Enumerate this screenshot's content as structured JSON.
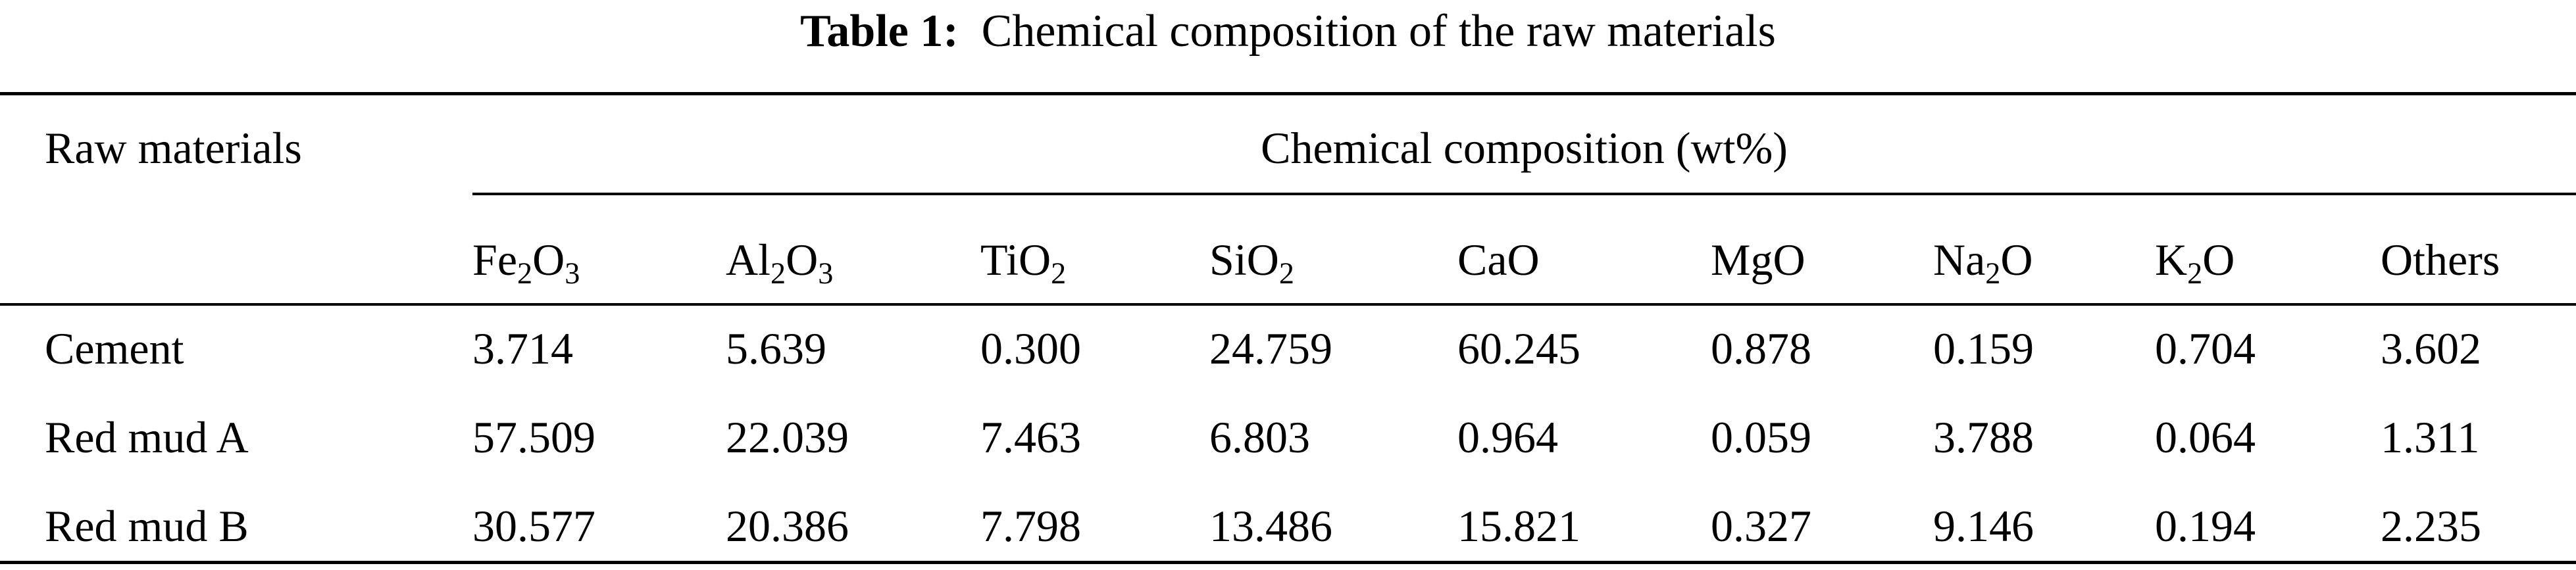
{
  "title": {
    "label": "Table 1:",
    "text": "Chemical composition of the raw materials"
  },
  "table": {
    "row_header": "Raw materials",
    "group_header": "Chemical composition (wt%)",
    "columns": [
      "Fe2O3",
      "Al2O3",
      "TiO2",
      "SiO2",
      "CaO",
      "MgO",
      "Na2O",
      "K2O",
      "Others"
    ],
    "rows": [
      {
        "name": "Cement",
        "values": [
          "3.714",
          "5.639",
          "0.300",
          "24.759",
          "60.245",
          "0.878",
          "0.159",
          "0.704",
          "3.602"
        ]
      },
      {
        "name": "Red mud A",
        "values": [
          "57.509",
          "22.039",
          "7.463",
          "6.803",
          "0.964",
          "0.059",
          "3.788",
          "0.064",
          "1.311"
        ]
      },
      {
        "name": "Red mud B",
        "values": [
          "30.577",
          "20.386",
          "7.798",
          "13.486",
          "15.821",
          "0.327",
          "9.146",
          "0.194",
          "2.235"
        ]
      }
    ]
  }
}
